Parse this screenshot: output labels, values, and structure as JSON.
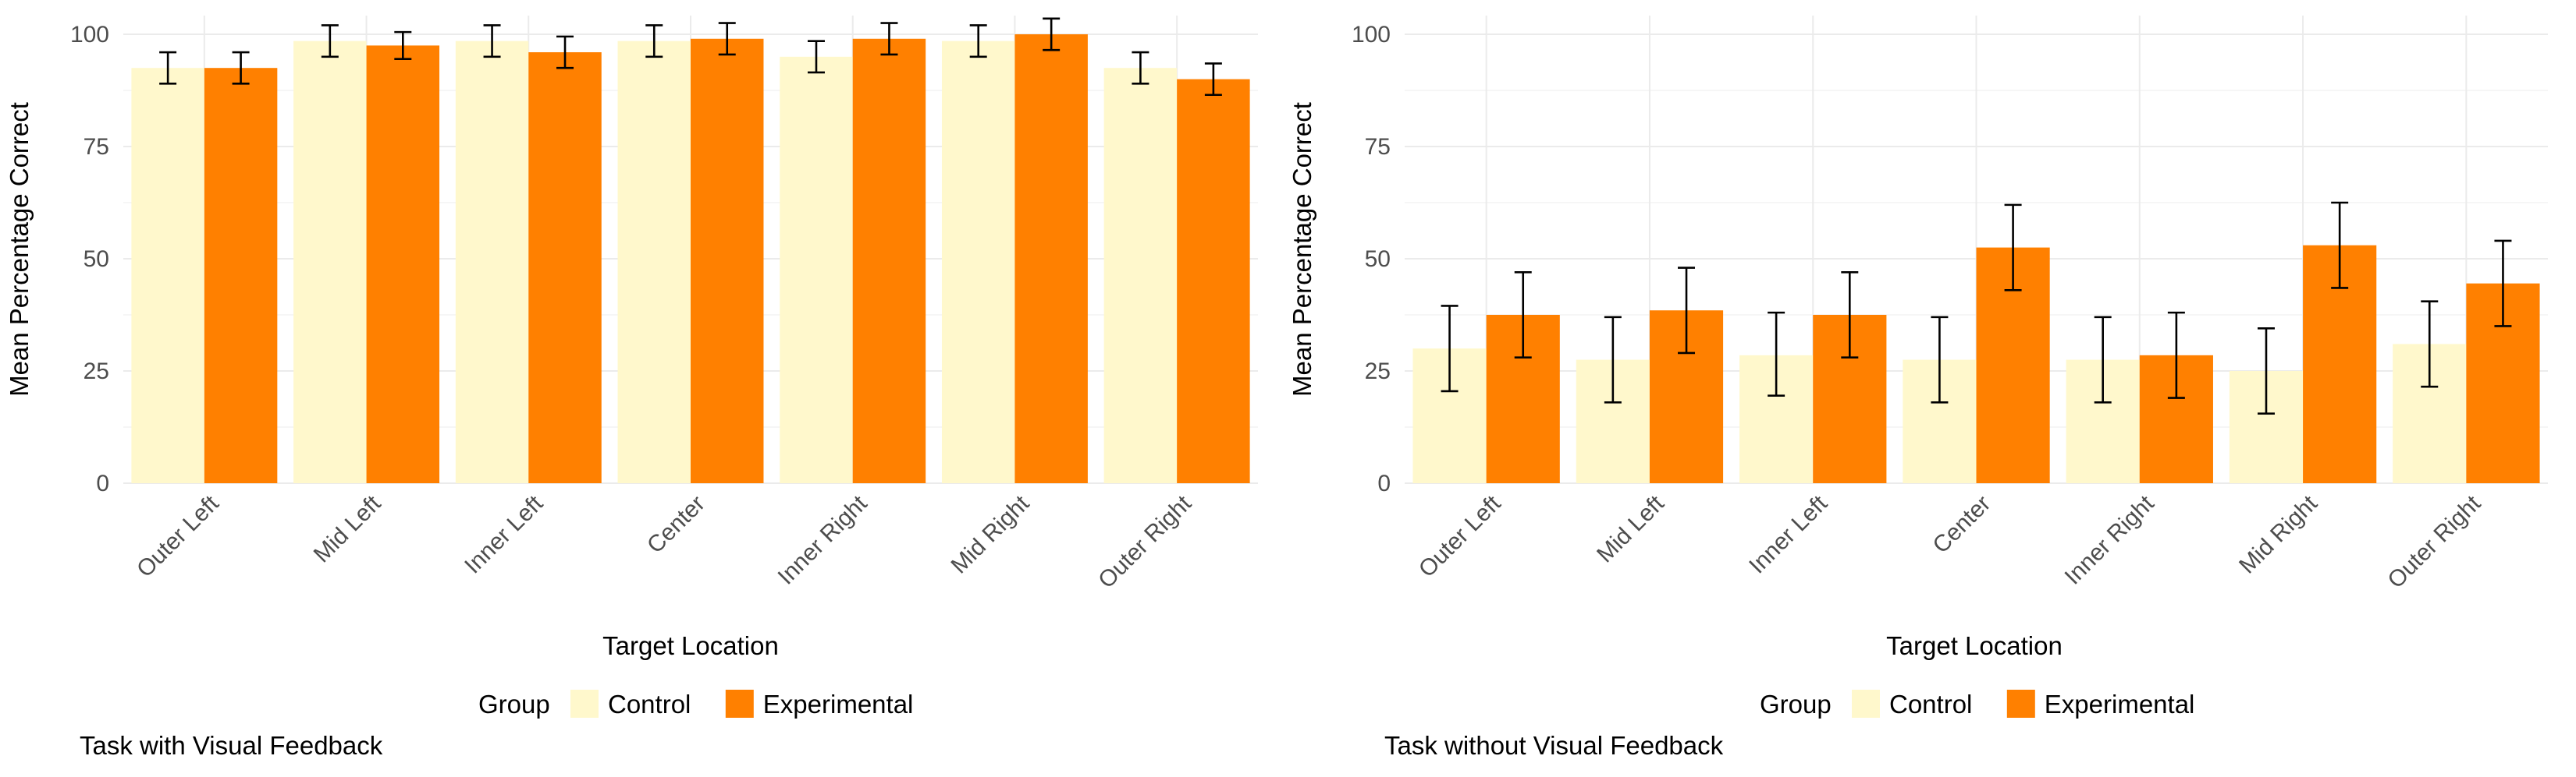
{
  "chart_data": [
    {
      "type": "bar",
      "title": "",
      "caption": "Task with Visual Feedback",
      "xlabel": "Target Location",
      "ylabel": "Mean Percentage Correct",
      "ylim": [
        0,
        100
      ],
      "yticks": [
        "0",
        "25",
        "50",
        "75",
        "100"
      ],
      "grid": true,
      "legend_position": "bottom",
      "legend_title": "Group",
      "categories": [
        "Outer Left",
        "Mid Left",
        "Inner Left",
        "Center",
        "Inner Right",
        "Mid Right",
        "Outer Right"
      ],
      "series": [
        {
          "name": "Control",
          "color": "#fff8cc",
          "values": [
            92.5,
            98.5,
            98.5,
            98.5,
            95.0,
            98.5,
            92.5
          ],
          "error_low": [
            89.0,
            95.0,
            95.0,
            95.0,
            91.5,
            95.0,
            89.0
          ],
          "error_high": [
            96.0,
            102.0,
            102.0,
            102.0,
            98.5,
            102.0,
            96.0
          ]
        },
        {
          "name": "Experimental",
          "color": "#ff8000",
          "values": [
            92.5,
            97.5,
            96.0,
            99.0,
            99.0,
            100.0,
            90.0
          ],
          "error_low": [
            89.0,
            94.5,
            92.5,
            95.5,
            95.5,
            96.5,
            86.5
          ],
          "error_high": [
            96.0,
            100.5,
            99.5,
            102.5,
            102.5,
            103.5,
            93.5
          ]
        }
      ]
    },
    {
      "type": "bar",
      "title": "",
      "caption": "Task without Visual Feedback",
      "xlabel": "Target Location",
      "ylabel": "Mean Percentage Correct",
      "ylim": [
        0,
        100
      ],
      "yticks": [
        "0",
        "25",
        "50",
        "75",
        "100"
      ],
      "grid": true,
      "legend_position": "bottom",
      "legend_title": "Group",
      "categories": [
        "Outer Left",
        "Mid Left",
        "Inner Left",
        "Center",
        "Inner Right",
        "Mid Right",
        "Outer Right"
      ],
      "series": [
        {
          "name": "Control",
          "color": "#fff8cc",
          "values": [
            30.0,
            27.5,
            28.5,
            27.5,
            27.5,
            25.0,
            31.0
          ],
          "error_low": [
            20.5,
            18.0,
            19.5,
            18.0,
            18.0,
            15.5,
            21.5
          ],
          "error_high": [
            39.5,
            37.0,
            38.0,
            37.0,
            37.0,
            34.5,
            40.5
          ]
        },
        {
          "name": "Experimental",
          "color": "#ff8000",
          "values": [
            37.5,
            38.5,
            37.5,
            52.5,
            28.5,
            53.0,
            44.5
          ],
          "error_low": [
            28.0,
            29.0,
            28.0,
            43.0,
            19.0,
            43.5,
            35.0
          ],
          "error_high": [
            47.0,
            48.0,
            47.0,
            62.0,
            38.0,
            62.5,
            54.0
          ]
        }
      ]
    }
  ]
}
